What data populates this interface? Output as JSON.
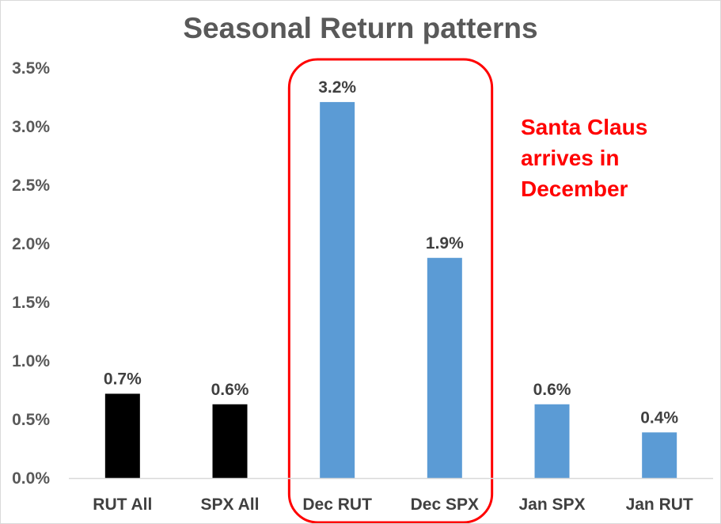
{
  "chart_data": {
    "type": "bar",
    "title": "Seasonal Return patterns",
    "xlabel": "",
    "ylabel": "",
    "categories": [
      "RUT All",
      "SPX All",
      "Dec RUT",
      "Dec SPX",
      "Jan SPX",
      "Jan RUT"
    ],
    "values": [
      0.72,
      0.63,
      3.21,
      1.88,
      0.63,
      0.39
    ],
    "data_labels": [
      "0.7%",
      "0.6%",
      "3.2%",
      "1.9%",
      "0.6%",
      "0.4%"
    ],
    "bar_colors": [
      "#000000",
      "#000000",
      "#5b9bd5",
      "#5b9bd5",
      "#5b9bd5",
      "#5b9bd5"
    ],
    "y_ticks": [
      "0.0%",
      "0.5%",
      "1.0%",
      "1.5%",
      "2.0%",
      "2.5%",
      "3.0%",
      "3.5%"
    ],
    "ylim": [
      0,
      3.5
    ],
    "grid": false,
    "legend": "none",
    "highlight": {
      "categories": [
        "Dec RUT",
        "Dec SPX"
      ],
      "color": "#ff0000",
      "shape": "rounded-rectangle"
    },
    "annotation": {
      "lines": [
        "Santa Claus",
        "arrives in",
        "December"
      ],
      "color": "#ff0000"
    }
  }
}
